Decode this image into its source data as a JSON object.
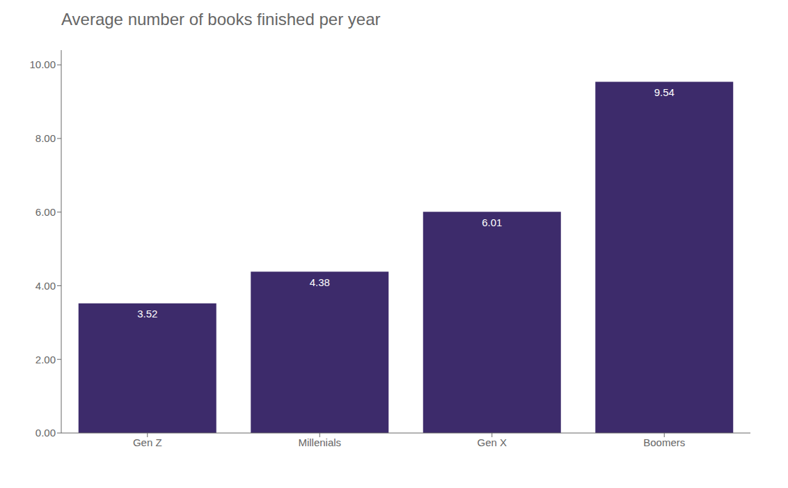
{
  "chart_data": {
    "type": "bar",
    "title": "Average number of books finished per year",
    "categories": [
      "Gen Z",
      "Millenials",
      "Gen X",
      "Boomers"
    ],
    "values": [
      3.52,
      4.38,
      6.01,
      9.54
    ],
    "color": "#3d2b6b",
    "ylim": [
      0,
      10.4
    ],
    "yticks": [
      {
        "value": 0,
        "label": "0.00"
      },
      {
        "value": 2,
        "label": "2.00"
      },
      {
        "value": 4,
        "label": "4.00"
      },
      {
        "value": 6,
        "label": "6.00"
      },
      {
        "value": 8,
        "label": "8.00"
      },
      {
        "value": 10,
        "label": "10.00"
      }
    ],
    "grid": false,
    "data_labels": true
  }
}
